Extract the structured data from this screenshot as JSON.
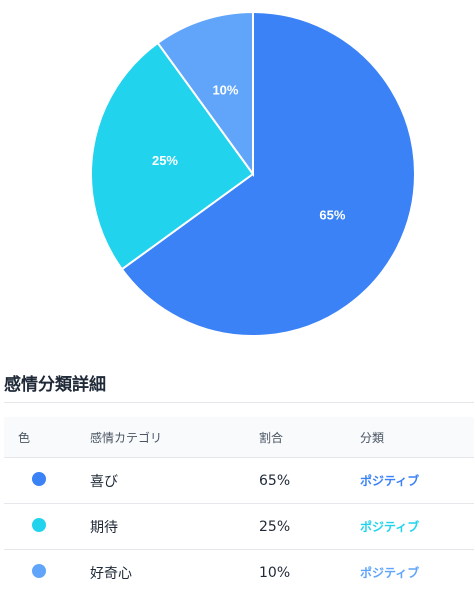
{
  "chart_data": {
    "type": "pie",
    "categories": [
      "喜び",
      "期待",
      "好奇心"
    ],
    "values": [
      65,
      25,
      10
    ],
    "labels": [
      "65%",
      "25%",
      "10%"
    ],
    "colors": [
      "#3b82f6",
      "#22d3ee",
      "#60a5fa"
    ],
    "legend": "none"
  },
  "section": {
    "title": "感情分類詳細"
  },
  "table": {
    "headers": {
      "color": "色",
      "category": "感情カテゴリ",
      "ratio": "割合",
      "class": "分類"
    },
    "rows": [
      {
        "category": "喜び",
        "ratio": "65%",
        "class": "ポジティブ",
        "color": "#3b82f6"
      },
      {
        "category": "期待",
        "ratio": "25%",
        "class": "ポジティブ",
        "color": "#22d3ee"
      },
      {
        "category": "好奇心",
        "ratio": "10%",
        "class": "ポジティブ",
        "color": "#60a5fa"
      }
    ]
  }
}
